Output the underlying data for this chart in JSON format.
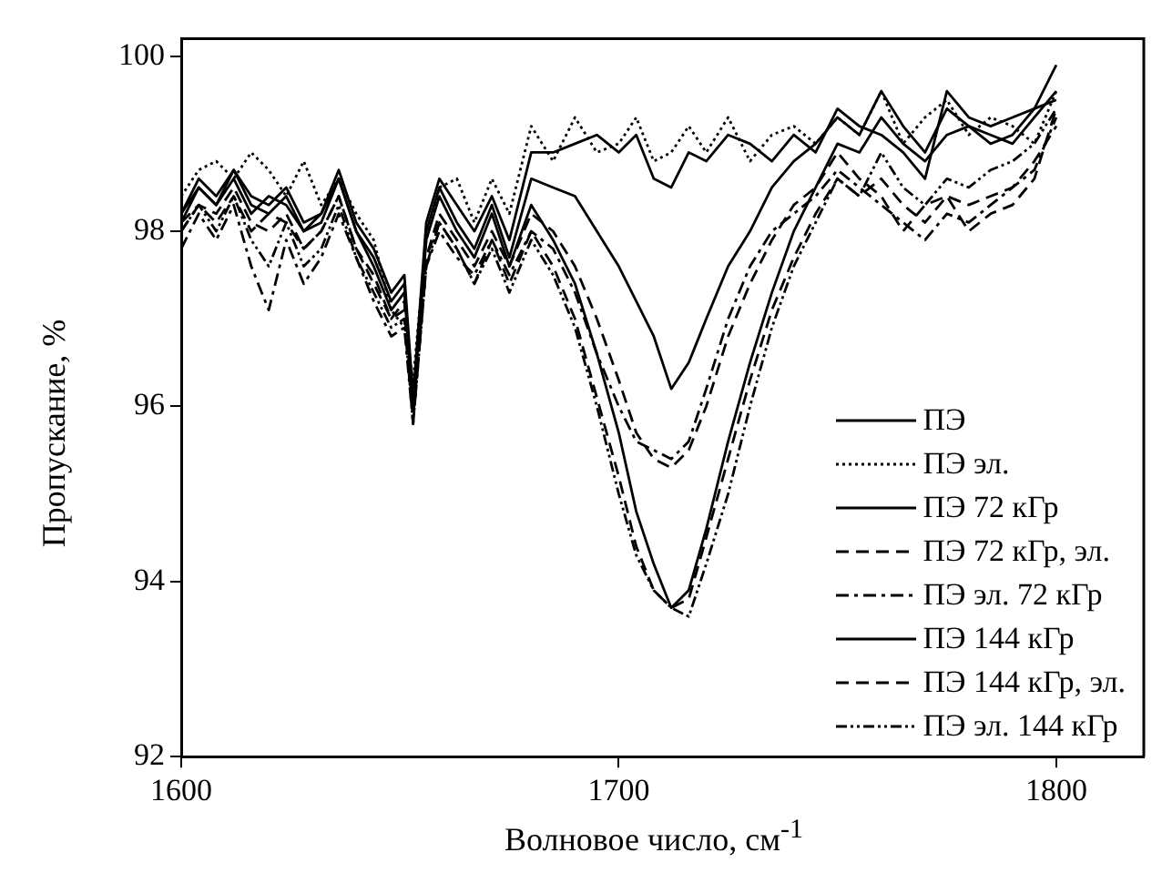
{
  "chart_data": {
    "type": "line",
    "xlabel": "Волновое число, см$^{-1}$",
    "ylabel": "Пропускание, %",
    "xlim": [
      1600,
      1820
    ],
    "xticks": [
      1600,
      1700,
      1800
    ],
    "ylim": [
      92,
      100.2
    ],
    "yticks": [
      92,
      94,
      96,
      98,
      100
    ],
    "grid": false,
    "legend": "bottom right",
    "marker": "none",
    "x": [
      1600,
      1604,
      1608,
      1612,
      1616,
      1620,
      1624,
      1628,
      1632,
      1636,
      1640,
      1644,
      1648,
      1651,
      1653,
      1656,
      1659,
      1663,
      1667,
      1671,
      1675,
      1680,
      1685,
      1690,
      1695,
      1700,
      1704,
      1708,
      1712,
      1716,
      1720,
      1725,
      1730,
      1735,
      1740,
      1745,
      1750,
      1755,
      1760,
      1765,
      1770,
      1775,
      1780,
      1785,
      1790,
      1795,
      1800
    ],
    "series": [
      {
        "name": "ПЭ",
        "color": "#000000",
        "line_style": "solid",
        "values": [
          98.2,
          98.6,
          98.4,
          98.7,
          98.4,
          98.3,
          98.5,
          98.1,
          98.2,
          98.7,
          98.1,
          97.8,
          97.3,
          97.5,
          96.1,
          98.1,
          98.6,
          98.3,
          98.0,
          98.4,
          97.9,
          98.9,
          98.9,
          99.0,
          99.1,
          98.9,
          99.1,
          98.6,
          98.5,
          98.9,
          98.8,
          99.1,
          99.0,
          98.8,
          99.1,
          98.9,
          99.4,
          99.2,
          99.1,
          98.9,
          98.6,
          99.6,
          99.3,
          99.2,
          99.3,
          99.4,
          99.9
        ]
      },
      {
        "name": "ПЭ эл.",
        "color": "#000000",
        "line_style": "dotted",
        "values": [
          98.4,
          98.7,
          98.8,
          98.6,
          98.9,
          98.7,
          98.4,
          98.8,
          98.3,
          98.6,
          98.2,
          97.9,
          97.1,
          96.9,
          96.3,
          97.9,
          98.5,
          98.6,
          98.1,
          98.6,
          98.2,
          99.2,
          98.8,
          99.3,
          98.9,
          99.0,
          99.3,
          98.8,
          98.9,
          99.2,
          98.9,
          99.3,
          98.8,
          99.1,
          99.2,
          99.0,
          99.3,
          99.1,
          99.6,
          99.0,
          99.3,
          99.5,
          99.1,
          99.3,
          99.2,
          99.0,
          99.6
        ]
      },
      {
        "name": "ПЭ 72 кГр",
        "color": "#000000",
        "line_style": "solid",
        "values": [
          98.1,
          98.5,
          98.3,
          98.6,
          98.2,
          98.4,
          98.3,
          98.0,
          98.2,
          98.6,
          98.0,
          97.7,
          97.2,
          97.4,
          96.0,
          98.0,
          98.5,
          98.1,
          97.8,
          98.3,
          97.7,
          98.6,
          98.5,
          98.4,
          98.0,
          97.6,
          97.2,
          96.8,
          96.2,
          96.5,
          97.0,
          97.6,
          98.0,
          98.5,
          98.8,
          99.0,
          99.3,
          99.1,
          99.6,
          99.2,
          98.9,
          99.4,
          99.2,
          99.1,
          99.0,
          99.3,
          99.6
        ]
      },
      {
        "name": "ПЭ 72 кГр, эл.",
        "color": "#000000",
        "line_style": "dashed",
        "values": [
          98.0,
          98.3,
          98.1,
          98.4,
          98.0,
          98.2,
          98.1,
          97.8,
          98.0,
          98.4,
          97.8,
          97.5,
          97.0,
          97.2,
          95.9,
          97.7,
          98.2,
          97.9,
          97.6,
          98.0,
          97.6,
          98.2,
          98.0,
          97.6,
          97.0,
          96.3,
          95.7,
          95.4,
          95.3,
          95.5,
          96.0,
          96.8,
          97.4,
          97.9,
          98.3,
          98.5,
          98.9,
          98.6,
          98.4,
          98.0,
          98.3,
          98.4,
          98.0,
          98.2,
          98.3,
          98.6,
          99.4
        ]
      },
      {
        "name": "ПЭ эл. 72 кГр",
        "color": "#000000",
        "line_style": "dashdot",
        "values": [
          97.8,
          98.2,
          97.9,
          98.3,
          97.6,
          97.1,
          97.9,
          97.4,
          97.7,
          98.2,
          97.7,
          97.2,
          96.8,
          96.9,
          95.8,
          97.6,
          98.0,
          97.7,
          97.5,
          97.9,
          97.5,
          98.0,
          97.8,
          97.3,
          96.6,
          96.0,
          95.6,
          95.5,
          95.4,
          95.6,
          96.2,
          97.0,
          97.6,
          98.0,
          98.2,
          98.4,
          98.7,
          98.5,
          98.3,
          98.1,
          97.9,
          98.2,
          98.1,
          98.3,
          98.5,
          98.7,
          99.3
        ]
      },
      {
        "name": "ПЭ 144 кГр",
        "color": "#000000",
        "line_style": "solid",
        "values": [
          98.2,
          98.5,
          98.3,
          98.7,
          98.3,
          98.2,
          98.4,
          98.0,
          98.1,
          98.6,
          98.0,
          97.6,
          97.1,
          97.3,
          96.0,
          97.9,
          98.4,
          98.0,
          97.7,
          98.2,
          97.6,
          98.3,
          97.9,
          97.4,
          96.6,
          95.7,
          94.8,
          94.2,
          93.7,
          93.9,
          94.6,
          95.6,
          96.5,
          97.3,
          98.0,
          98.5,
          99.0,
          98.9,
          99.3,
          99.0,
          98.8,
          99.1,
          99.2,
          99.0,
          99.1,
          99.4,
          99.5
        ]
      },
      {
        "name": "ПЭ 144 кГр, эл.",
        "color": "#000000",
        "line_style": "dashed",
        "values": [
          98.1,
          98.3,
          98.2,
          98.5,
          98.1,
          98.0,
          98.2,
          97.8,
          98.0,
          98.4,
          97.8,
          97.4,
          97.0,
          97.1,
          95.9,
          97.7,
          98.1,
          97.8,
          97.4,
          97.9,
          97.4,
          98.0,
          97.6,
          97.0,
          96.1,
          95.2,
          94.4,
          93.9,
          93.7,
          93.8,
          94.5,
          95.4,
          96.3,
          97.1,
          97.7,
          98.2,
          98.6,
          98.4,
          98.6,
          98.3,
          98.1,
          98.4,
          98.3,
          98.4,
          98.5,
          98.8,
          99.2
        ]
      },
      {
        "name": "ПЭ эл. 144 кГр",
        "color": "#000000",
        "line_style": "dashdotdot",
        "values": [
          98.0,
          98.3,
          98.0,
          98.4,
          97.9,
          97.6,
          98.1,
          97.6,
          97.8,
          98.3,
          97.7,
          97.3,
          96.9,
          97.0,
          95.8,
          97.6,
          98.1,
          97.8,
          97.4,
          97.8,
          97.3,
          97.9,
          97.5,
          96.9,
          96.0,
          95.0,
          94.3,
          93.9,
          93.7,
          93.6,
          94.2,
          95.0,
          96.0,
          96.9,
          97.6,
          98.1,
          98.6,
          98.4,
          98.9,
          98.5,
          98.3,
          98.6,
          98.5,
          98.7,
          98.8,
          99.0,
          99.4
        ]
      }
    ]
  }
}
